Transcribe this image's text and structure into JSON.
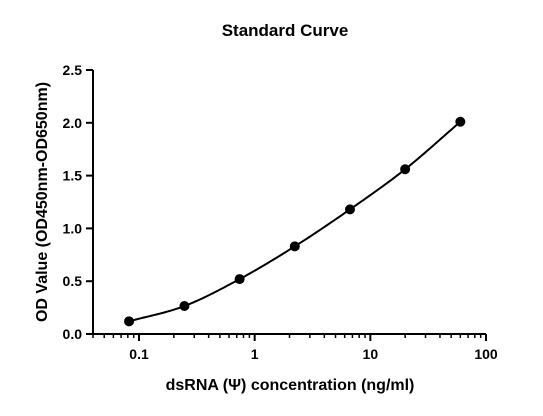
{
  "chart_data": {
    "type": "scatter",
    "title": "Standard Curve",
    "xlabel": "dsRNA (Ψ) concentration (ng/ml)",
    "ylabel": "OD Value (OD450nm-OD650nm)",
    "x_scale": "log",
    "xlim": [
      0.04,
      100
    ],
    "ylim": [
      0,
      2.5
    ],
    "x_ticks": [
      {
        "value": 0.1,
        "label": "0.1"
      },
      {
        "value": 1,
        "label": "1"
      },
      {
        "value": 10,
        "label": "10"
      },
      {
        "value": 100,
        "label": "100"
      }
    ],
    "y_ticks": [
      {
        "value": 0,
        "label": "0.0"
      },
      {
        "value": 0.5,
        "label": "0.5"
      },
      {
        "value": 1.0,
        "label": "1.0"
      },
      {
        "value": 1.5,
        "label": "1.5"
      },
      {
        "value": 2.0,
        "label": "2.0"
      },
      {
        "value": 2.5,
        "label": "2.5"
      }
    ],
    "grid": false,
    "series": [
      {
        "x": [
          0.082,
          0.247,
          0.741,
          2.222,
          6.667,
          20,
          60
        ],
        "y": [
          0.12,
          0.265,
          0.52,
          0.83,
          1.18,
          1.56,
          2.01
        ],
        "fit_curve": true,
        "color": "#000000"
      }
    ]
  }
}
